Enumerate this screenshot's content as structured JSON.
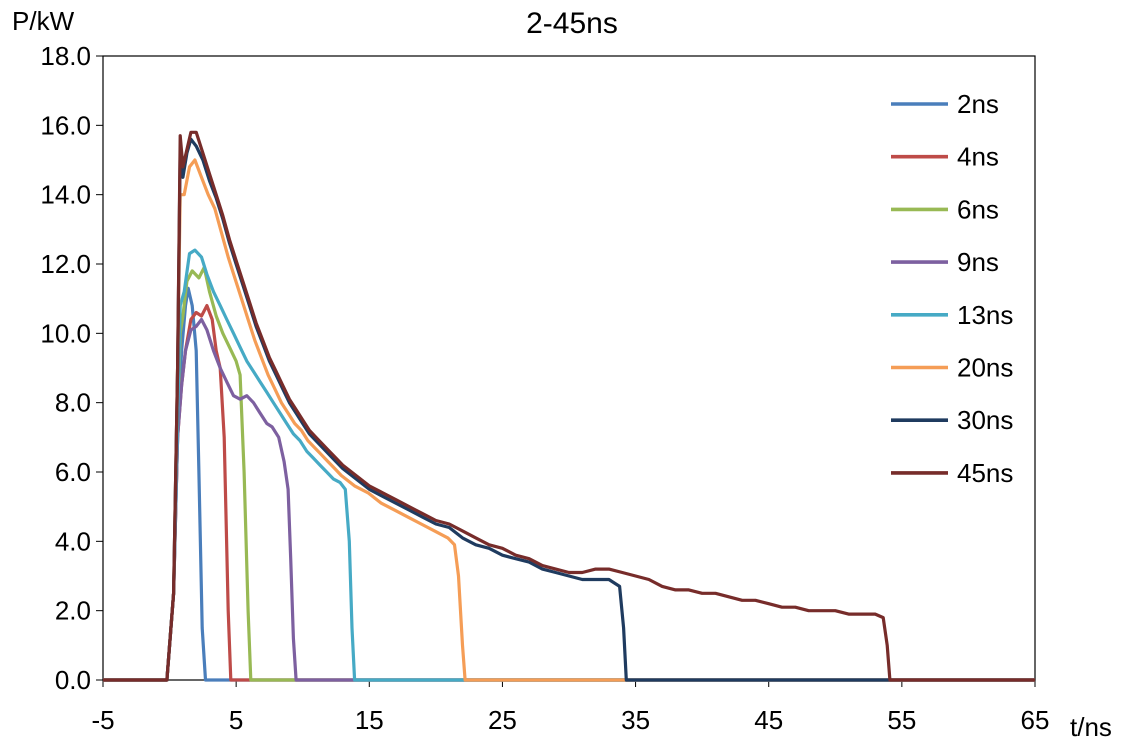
{
  "chart_data": {
    "type": "line",
    "title": "2-45ns",
    "ylabel": "P/kW",
    "xlabel": "t/ns",
    "xlim": [
      -5,
      65
    ],
    "ylim": [
      0,
      18
    ],
    "x_ticks": [
      "-5",
      "5",
      "15",
      "25",
      "35",
      "45",
      "55",
      "65"
    ],
    "y_ticks": [
      "0.0",
      "2.0",
      "4.0",
      "6.0",
      "8.0",
      "10.0",
      "12.0",
      "14.0",
      "16.0",
      "18.0"
    ],
    "legend_position": "top-right",
    "grid": false,
    "series": [
      {
        "name": "2ns",
        "color": "#4a7ebb",
        "points": [
          [
            -5,
            0
          ],
          [
            -0.2,
            0
          ],
          [
            0.3,
            2.5
          ],
          [
            0.6,
            7.0
          ],
          [
            0.9,
            9.5
          ],
          [
            1.2,
            10.8
          ],
          [
            1.4,
            11.3
          ],
          [
            1.7,
            10.8
          ],
          [
            2.0,
            9.5
          ],
          [
            2.2,
            6.0
          ],
          [
            2.45,
            1.5
          ],
          [
            2.7,
            0
          ],
          [
            65,
            0
          ]
        ]
      },
      {
        "name": "4ns",
        "color": "#be4b48",
        "points": [
          [
            -5,
            0
          ],
          [
            -0.2,
            0
          ],
          [
            0.3,
            2.5
          ],
          [
            0.6,
            7.0
          ],
          [
            0.9,
            8.5
          ],
          [
            1.2,
            9.5
          ],
          [
            1.6,
            10.4
          ],
          [
            2.0,
            10.6
          ],
          [
            2.4,
            10.5
          ],
          [
            2.8,
            10.8
          ],
          [
            3.2,
            10.4
          ],
          [
            3.5,
            9.5
          ],
          [
            3.8,
            9.0
          ],
          [
            4.1,
            7.0
          ],
          [
            4.4,
            2.0
          ],
          [
            4.6,
            0
          ],
          [
            65,
            0
          ]
        ]
      },
      {
        "name": "6ns",
        "color": "#98b954",
        "points": [
          [
            -5,
            0
          ],
          [
            -0.2,
            0
          ],
          [
            0.3,
            2.5
          ],
          [
            0.6,
            7.5
          ],
          [
            0.8,
            10.0
          ],
          [
            1.0,
            10.5
          ],
          [
            1.3,
            11.5
          ],
          [
            1.7,
            11.8
          ],
          [
            2.2,
            11.6
          ],
          [
            2.6,
            11.9
          ],
          [
            3.0,
            11.2
          ],
          [
            3.5,
            10.5
          ],
          [
            4.0,
            10.0
          ],
          [
            4.5,
            9.6
          ],
          [
            5.0,
            9.2
          ],
          [
            5.3,
            8.8
          ],
          [
            5.6,
            6.0
          ],
          [
            5.9,
            2.0
          ],
          [
            6.1,
            0
          ],
          [
            65,
            0
          ]
        ]
      },
      {
        "name": "9ns",
        "color": "#7d60a0",
        "points": [
          [
            -5,
            0
          ],
          [
            -0.2,
            0
          ],
          [
            0.3,
            2.5
          ],
          [
            0.6,
            7.0
          ],
          [
            0.9,
            8.5
          ],
          [
            1.2,
            9.5
          ],
          [
            1.6,
            10.1
          ],
          [
            2.0,
            10.2
          ],
          [
            2.4,
            10.4
          ],
          [
            2.8,
            10.1
          ],
          [
            3.3,
            9.5
          ],
          [
            3.8,
            9.0
          ],
          [
            4.3,
            8.6
          ],
          [
            4.8,
            8.2
          ],
          [
            5.3,
            8.1
          ],
          [
            5.8,
            8.2
          ],
          [
            6.3,
            8.0
          ],
          [
            6.8,
            7.7
          ],
          [
            7.3,
            7.4
          ],
          [
            7.7,
            7.3
          ],
          [
            8.2,
            7.0
          ],
          [
            8.6,
            6.3
          ],
          [
            8.9,
            5.5
          ],
          [
            9.1,
            3.5
          ],
          [
            9.3,
            1.2
          ],
          [
            9.5,
            0
          ],
          [
            65,
            0
          ]
        ]
      },
      {
        "name": "13ns",
        "color": "#46aac5",
        "points": [
          [
            -5,
            0
          ],
          [
            -0.2,
            0
          ],
          [
            0.3,
            2.5
          ],
          [
            0.6,
            7.5
          ],
          [
            0.8,
            10.8
          ],
          [
            1.1,
            11.2
          ],
          [
            1.5,
            12.3
          ],
          [
            1.9,
            12.4
          ],
          [
            2.4,
            12.2
          ],
          [
            2.8,
            11.7
          ],
          [
            3.3,
            11.2
          ],
          [
            3.8,
            10.8
          ],
          [
            4.3,
            10.4
          ],
          [
            4.8,
            10.0
          ],
          [
            5.3,
            9.6
          ],
          [
            5.8,
            9.2
          ],
          [
            6.3,
            8.9
          ],
          [
            6.8,
            8.6
          ],
          [
            7.3,
            8.3
          ],
          [
            7.8,
            8.0
          ],
          [
            8.3,
            7.7
          ],
          [
            8.8,
            7.4
          ],
          [
            9.3,
            7.1
          ],
          [
            9.8,
            6.9
          ],
          [
            10.3,
            6.6
          ],
          [
            10.8,
            6.4
          ],
          [
            11.3,
            6.2
          ],
          [
            11.8,
            6.0
          ],
          [
            12.3,
            5.8
          ],
          [
            12.8,
            5.7
          ],
          [
            13.2,
            5.5
          ],
          [
            13.5,
            4.0
          ],
          [
            13.7,
            1.5
          ],
          [
            13.9,
            0
          ],
          [
            65,
            0
          ]
        ]
      },
      {
        "name": "20ns",
        "color": "#f59d56",
        "points": [
          [
            -5,
            0
          ],
          [
            -0.2,
            0
          ],
          [
            0.3,
            2.5
          ],
          [
            0.6,
            9.0
          ],
          [
            0.8,
            14.0
          ],
          [
            1.1,
            14.0
          ],
          [
            1.5,
            14.8
          ],
          [
            1.9,
            15.0
          ],
          [
            2.4,
            14.5
          ],
          [
            2.9,
            14.0
          ],
          [
            3.4,
            13.6
          ],
          [
            3.9,
            12.9
          ],
          [
            4.4,
            12.2
          ],
          [
            4.9,
            11.6
          ],
          [
            5.4,
            11.0
          ],
          [
            5.9,
            10.4
          ],
          [
            6.4,
            9.8
          ],
          [
            6.9,
            9.3
          ],
          [
            7.4,
            8.8
          ],
          [
            7.9,
            8.4
          ],
          [
            8.4,
            8.0
          ],
          [
            8.9,
            7.7
          ],
          [
            9.4,
            7.4
          ],
          [
            9.9,
            7.2
          ],
          [
            10.4,
            6.9
          ],
          [
            10.9,
            6.7
          ],
          [
            11.4,
            6.5
          ],
          [
            11.9,
            6.3
          ],
          [
            12.4,
            6.1
          ],
          [
            12.9,
            5.9
          ],
          [
            13.9,
            5.6
          ],
          [
            14.9,
            5.4
          ],
          [
            15.9,
            5.1
          ],
          [
            16.9,
            4.9
          ],
          [
            17.9,
            4.7
          ],
          [
            18.9,
            4.5
          ],
          [
            19.9,
            4.3
          ],
          [
            20.9,
            4.1
          ],
          [
            21.4,
            3.9
          ],
          [
            21.7,
            3.0
          ],
          [
            22.0,
            1.0
          ],
          [
            22.2,
            0
          ],
          [
            65,
            0
          ]
        ]
      },
      {
        "name": "30ns",
        "color": "#1f3b5f",
        "points": [
          [
            -5,
            0
          ],
          [
            -0.2,
            0
          ],
          [
            0.3,
            2.5
          ],
          [
            0.6,
            9.0
          ],
          [
            0.8,
            15.3
          ],
          [
            1.0,
            14.5
          ],
          [
            1.3,
            15.2
          ],
          [
            1.6,
            15.6
          ],
          [
            2.0,
            15.4
          ],
          [
            2.5,
            15.0
          ],
          [
            3.0,
            14.4
          ],
          [
            3.5,
            13.9
          ],
          [
            4.0,
            13.3
          ],
          [
            4.5,
            12.6
          ],
          [
            5.0,
            12.0
          ],
          [
            5.5,
            11.4
          ],
          [
            6.0,
            10.8
          ],
          [
            6.5,
            10.2
          ],
          [
            7.0,
            9.7
          ],
          [
            7.5,
            9.2
          ],
          [
            8.0,
            8.8
          ],
          [
            8.5,
            8.4
          ],
          [
            9.0,
            8.0
          ],
          [
            9.5,
            7.7
          ],
          [
            10.0,
            7.4
          ],
          [
            10.5,
            7.1
          ],
          [
            11.0,
            6.9
          ],
          [
            11.5,
            6.7
          ],
          [
            12.0,
            6.5
          ],
          [
            12.5,
            6.3
          ],
          [
            13.0,
            6.1
          ],
          [
            14.0,
            5.8
          ],
          [
            15.0,
            5.5
          ],
          [
            16.0,
            5.3
          ],
          [
            17.0,
            5.1
          ],
          [
            18.0,
            4.9
          ],
          [
            19.0,
            4.7
          ],
          [
            20.0,
            4.5
          ],
          [
            21.0,
            4.4
          ],
          [
            22.0,
            4.1
          ],
          [
            23.0,
            3.9
          ],
          [
            24.0,
            3.8
          ],
          [
            25.0,
            3.6
          ],
          [
            26.0,
            3.5
          ],
          [
            27.0,
            3.4
          ],
          [
            28.0,
            3.2
          ],
          [
            29.0,
            3.1
          ],
          [
            30.0,
            3.0
          ],
          [
            31.0,
            2.9
          ],
          [
            32.0,
            2.9
          ],
          [
            33.0,
            2.9
          ],
          [
            33.8,
            2.7
          ],
          [
            34.1,
            1.5
          ],
          [
            34.3,
            0
          ],
          [
            65,
            0
          ]
        ]
      },
      {
        "name": "45ns",
        "color": "#772c2a",
        "points": [
          [
            -5,
            0
          ],
          [
            -0.2,
            0
          ],
          [
            0.3,
            2.5
          ],
          [
            0.6,
            9.0
          ],
          [
            0.8,
            15.7
          ],
          [
            1.0,
            14.8
          ],
          [
            1.3,
            15.3
          ],
          [
            1.6,
            15.8
          ],
          [
            2.0,
            15.8
          ],
          [
            2.5,
            15.2
          ],
          [
            3.0,
            14.6
          ],
          [
            3.5,
            14.0
          ],
          [
            4.0,
            13.4
          ],
          [
            4.5,
            12.7
          ],
          [
            5.0,
            12.1
          ],
          [
            5.5,
            11.5
          ],
          [
            6.0,
            10.9
          ],
          [
            6.5,
            10.3
          ],
          [
            7.0,
            9.8
          ],
          [
            7.5,
            9.3
          ],
          [
            8.0,
            8.9
          ],
          [
            8.5,
            8.5
          ],
          [
            9.0,
            8.1
          ],
          [
            9.5,
            7.8
          ],
          [
            10.0,
            7.5
          ],
          [
            10.5,
            7.2
          ],
          [
            11.0,
            7.0
          ],
          [
            11.5,
            6.8
          ],
          [
            12.0,
            6.6
          ],
          [
            12.5,
            6.4
          ],
          [
            13.0,
            6.2
          ],
          [
            14.0,
            5.9
          ],
          [
            15.0,
            5.6
          ],
          [
            16.0,
            5.4
          ],
          [
            17.0,
            5.2
          ],
          [
            18.0,
            5.0
          ],
          [
            19.0,
            4.8
          ],
          [
            20.0,
            4.6
          ],
          [
            21.0,
            4.5
          ],
          [
            22.0,
            4.3
          ],
          [
            23.0,
            4.1
          ],
          [
            24.0,
            3.9
          ],
          [
            25.0,
            3.8
          ],
          [
            26.0,
            3.6
          ],
          [
            27.0,
            3.5
          ],
          [
            28.0,
            3.3
          ],
          [
            29.0,
            3.2
          ],
          [
            30.0,
            3.1
          ],
          [
            31.0,
            3.1
          ],
          [
            32.0,
            3.2
          ],
          [
            33.0,
            3.2
          ],
          [
            34.0,
            3.1
          ],
          [
            35.0,
            3.0
          ],
          [
            36.0,
            2.9
          ],
          [
            37.0,
            2.7
          ],
          [
            38.0,
            2.6
          ],
          [
            39.0,
            2.6
          ],
          [
            40.0,
            2.5
          ],
          [
            41.0,
            2.5
          ],
          [
            42.0,
            2.4
          ],
          [
            43.0,
            2.3
          ],
          [
            44.0,
            2.3
          ],
          [
            45.0,
            2.2
          ],
          [
            46.0,
            2.1
          ],
          [
            47.0,
            2.1
          ],
          [
            48.0,
            2.0
          ],
          [
            49.0,
            2.0
          ],
          [
            50.0,
            2.0
          ],
          [
            51.0,
            1.9
          ],
          [
            52.0,
            1.9
          ],
          [
            53.0,
            1.9
          ],
          [
            53.6,
            1.8
          ],
          [
            53.9,
            1.0
          ],
          [
            54.1,
            0
          ],
          [
            65,
            0
          ]
        ]
      }
    ]
  }
}
